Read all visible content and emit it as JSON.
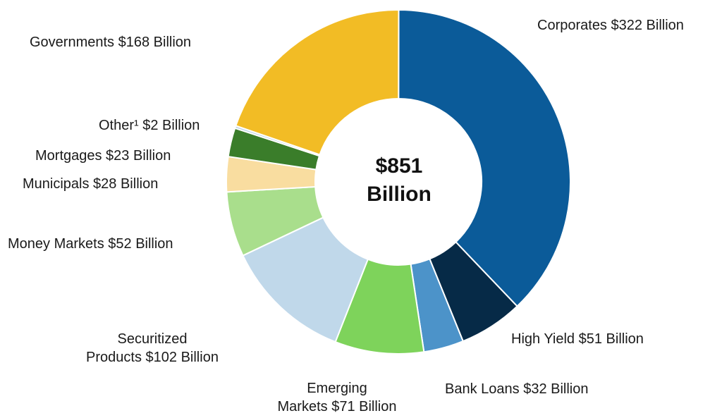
{
  "chart_data": {
    "type": "pie",
    "total_label": [
      "$851",
      "Billion"
    ],
    "slices": [
      {
        "label": "Corporates $322 Billion",
        "value": 322,
        "color": "#0b5b99"
      },
      {
        "label": "High Yield $51 Billion",
        "value": 51,
        "color": "#062a47"
      },
      {
        "label": "Bank Loans $32 Billion",
        "value": 32,
        "color": "#4c93c9"
      },
      {
        "label": "Emerging Markets $71 Billion",
        "value": 71,
        "color": "#7ed35b"
      },
      {
        "label": "Securitized Products $102 Billion",
        "value": 102,
        "color": "#c0d8ea"
      },
      {
        "label": "Money Markets $52 Billion",
        "value": 52,
        "color": "#a9de8c"
      },
      {
        "label": "Municipals $28 Billion",
        "value": 28,
        "color": "#f9dda0"
      },
      {
        "label": "Mortgages $23 Billion",
        "value": 23,
        "color": "#3a7d2a"
      },
      {
        "label": "Other¹ $2 Billion",
        "value": 2,
        "color": "#bcd4e6"
      },
      {
        "label": "Governments $168 Billion",
        "value": 168,
        "color": "#f2bc25"
      }
    ]
  },
  "labels": {
    "corporates": "Corporates $322 Billion",
    "high_yield": "High Yield $51 Billion",
    "bank_loans": "Bank Loans $32 Billion",
    "emerging_1": "Emerging",
    "emerging_2": "Markets $71 Billion",
    "securitized_1": "Securitized",
    "securitized_2": "Products $102 Billion",
    "money_markets": "Money Markets $52 Billion",
    "municipals": "Municipals $28 Billion",
    "mortgages": "Mortgages $23 Billion",
    "other": "Other¹ $2 Billion",
    "governments": "Governments $168 Billion"
  }
}
